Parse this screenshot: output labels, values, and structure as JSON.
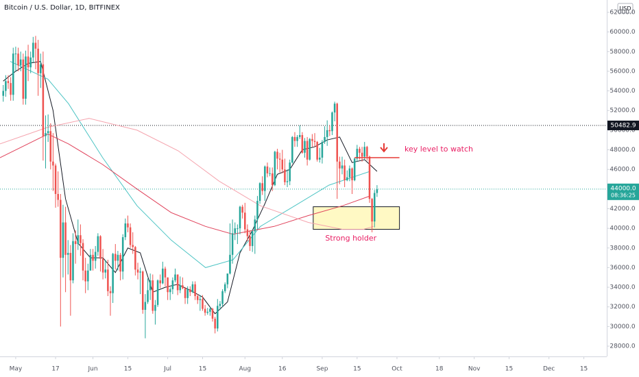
{
  "chart_data": {
    "type": "candlestick",
    "title": "Bitcoin / U.S. Dollar, 1D, BITFINEX",
    "currency": "USD",
    "up_color": "#26a69a",
    "down_color": "#ef5350",
    "open": [
      53500,
      54000,
      55000,
      54800,
      53600,
      57800,
      57800,
      56600,
      57200,
      53200,
      57500,
      56400,
      57400,
      58900,
      58300,
      55800,
      56700,
      49400,
      49700,
      49900,
      46800,
      46400,
      43500,
      42900,
      37000,
      40600,
      37300,
      37500,
      34700,
      38700,
      38400,
      39300,
      38500,
      35700,
      34600,
      35700,
      37300,
      36700,
      37600,
      39200,
      36900,
      35500,
      35800,
      33600,
      33400,
      37400,
      36700,
      37300,
      35600,
      39100,
      40500,
      40100,
      38300,
      38100,
      35800,
      35500,
      35600,
      31700,
      32500,
      33700,
      34700,
      31600,
      32200,
      34700,
      34400,
      35900,
      35000,
      33500,
      33800,
      34700,
      35300,
      33700,
      34200,
      33900,
      32900,
      33800,
      33500,
      34300,
      33100,
      32700,
      32800,
      31800,
      31400,
      31500,
      31800,
      30800,
      29800,
      32100,
      32300,
      33600,
      34300,
      35400,
      37300,
      39500,
      40000,
      40000,
      42200,
      41600,
      39900,
      39200,
      38200,
      39700,
      40900,
      42800,
      44600,
      43800,
      46300,
      45600,
      45600,
      44400,
      47800,
      47100,
      47000,
      46000,
      44700,
      44800,
      46700,
      49300,
      48900,
      49300,
      49500,
      47700,
      48900,
      47000,
      49100,
      48900,
      48800,
      47000,
      47200,
      48800,
      49300,
      50000,
      49900,
      51800,
      52700,
      46800,
      46100,
      46400,
      44900,
      45200,
      46100,
      44900,
      47100,
      48100,
      47700,
      47300,
      48300,
      47300,
      43000,
      40700,
      43600
    ],
    "high": [
      54600,
      55600,
      55600,
      55400,
      58400,
      58500,
      58400,
      58000,
      57800,
      58100,
      58700,
      58000,
      59500,
      59600,
      59200,
      57800,
      58000,
      51500,
      51600,
      50700,
      49700,
      46600,
      45800,
      43500,
      42400,
      42200,
      38800,
      38300,
      39500,
      39800,
      40900,
      40400,
      38900,
      37000,
      36400,
      37900,
      37900,
      38200,
      39500,
      39300,
      37900,
      36800,
      36800,
      34100,
      37500,
      38400,
      37700,
      37500,
      39400,
      41000,
      41300,
      40500,
      39600,
      38200,
      36500,
      36000,
      35700,
      33300,
      34900,
      35400,
      35300,
      32700,
      34800,
      35300,
      36600,
      36100,
      35000,
      34000,
      35000,
      35900,
      35300,
      35100,
      35000,
      34000,
      34100,
      34100,
      34600,
      34600,
      33300,
      33200,
      33200,
      32200,
      31900,
      32000,
      31900,
      31000,
      32800,
      32600,
      33800,
      34500,
      35400,
      40500,
      40900,
      40600,
      40400,
      42300,
      42400,
      42600,
      40400,
      39800,
      39900,
      41300,
      43300,
      44700,
      45300,
      46400,
      46700,
      46200,
      46200,
      47900,
      48100,
      47700,
      48000,
      47100,
      46000,
      47000,
      49400,
      49800,
      49500,
      50500,
      49800,
      49200,
      49300,
      49200,
      49600,
      49700,
      48900,
      48200,
      49000,
      50400,
      51000,
      50500,
      51900,
      52900,
      52800,
      47300,
      47300,
      47000,
      45900,
      46400,
      46200,
      47200,
      48500,
      48300,
      48300,
      48800,
      48400,
      47400,
      43100,
      43900,
      44400
    ],
    "low": [
      52900,
      53400,
      54200,
      53000,
      53000,
      56000,
      56000,
      56000,
      52600,
      52600,
      55000,
      55800,
      56900,
      56200,
      53500,
      54300,
      46900,
      46100,
      48800,
      46000,
      43800,
      42100,
      42200,
      30000,
      35000,
      33500,
      35300,
      31100,
      34400,
      36400,
      37800,
      37200,
      34700,
      33400,
      33700,
      35700,
      35700,
      35900,
      37200,
      35600,
      34800,
      34900,
      33100,
      31100,
      32400,
      35800,
      35700,
      34700,
      34800,
      38800,
      39600,
      38000,
      37400,
      35200,
      34800,
      33300,
      31300,
      28800,
      32300,
      32700,
      31300,
      30200,
      32000,
      33900,
      34300,
      34100,
      32700,
      32700,
      33300,
      34500,
      33200,
      33400,
      33800,
      32300,
      32300,
      33100,
      33400,
      32700,
      32300,
      31600,
      31600,
      31100,
      31200,
      31100,
      30500,
      29300,
      29500,
      31700,
      32000,
      33400,
      33900,
      35300,
      36400,
      38800,
      38400,
      39400,
      41000,
      39500,
      38700,
      37700,
      37600,
      37400,
      39900,
      42500,
      43400,
      42800,
      45200,
      45300,
      43800,
      44300,
      46000,
      45700,
      45600,
      44400,
      44200,
      44400,
      46600,
      48300,
      48300,
      49100,
      47600,
      47200,
      46400,
      46900,
      48300,
      48300,
      46800,
      46700,
      46600,
      48600,
      48400,
      49400,
      49500,
      50900,
      43000,
      44500,
      45500,
      44200,
      44800,
      44800,
      43500,
      44800,
      46800,
      47000,
      46800,
      47000,
      46900,
      42600,
      39600,
      40100,
      43200
    ],
    "close": [
      54000,
      55000,
      54800,
      53600,
      57800,
      57800,
      56600,
      57200,
      53200,
      57500,
      56400,
      57400,
      58900,
      58300,
      55800,
      56700,
      49400,
      49700,
      49900,
      46800,
      46400,
      43500,
      42900,
      37000,
      40600,
      37300,
      37500,
      34700,
      38700,
      38400,
      39300,
      38500,
      35700,
      34600,
      35700,
      37300,
      36700,
      37600,
      39200,
      36900,
      35500,
      35800,
      33600,
      33400,
      37400,
      36700,
      37300,
      35600,
      39100,
      40500,
      40100,
      38300,
      38100,
      35800,
      35500,
      35600,
      31700,
      32500,
      33700,
      34700,
      31600,
      32200,
      34700,
      34400,
      35900,
      35000,
      33500,
      33800,
      34700,
      35300,
      33700,
      34200,
      33900,
      32900,
      33800,
      33500,
      34300,
      33100,
      32700,
      32800,
      31800,
      31400,
      31500,
      31800,
      30800,
      29800,
      32100,
      32300,
      33600,
      34300,
      35400,
      37300,
      39500,
      40000,
      40000,
      42200,
      41600,
      39900,
      39200,
      38200,
      39700,
      40900,
      42800,
      44600,
      43800,
      46300,
      45600,
      45600,
      44400,
      47800,
      47100,
      47000,
      46000,
      44700,
      44800,
      46700,
      49300,
      48900,
      49300,
      49500,
      47700,
      48900,
      47000,
      49100,
      48900,
      48800,
      47000,
      47200,
      48800,
      49300,
      50000,
      49900,
      51800,
      52700,
      46800,
      46100,
      46400,
      44900,
      45200,
      46100,
      44900,
      47100,
      48100,
      47700,
      47300,
      48300,
      47300,
      43000,
      40700,
      43600,
      44000
    ],
    "lines": [
      {
        "color": "#131722",
        "x": [
          0,
          5,
          10,
          15,
          20,
          25,
          30,
          35,
          40,
          45,
          50,
          55,
          60,
          65,
          70,
          75,
          80,
          85,
          90,
          95,
          100,
          105,
          110,
          115,
          120,
          125,
          130,
          135,
          140,
          145,
          150
        ],
        "values": [
          55000,
          56000,
          56800,
          57000,
          52000,
          43000,
          38500,
          37000,
          37000,
          35500,
          38000,
          37500,
          33500,
          34000,
          34300,
          33700,
          33000,
          31300,
          32500,
          37500,
          39800,
          42500,
          45500,
          46000,
          48000,
          48300,
          49000,
          49300,
          46700,
          47000,
          45800
        ]
      },
      {
        "color": "#4dc4c4",
        "x": [
          2.8,
          17.9,
          26.2,
          39.9,
          53.7,
          67.4,
          81.2,
          92.2,
          103.2,
          117,
          130.7,
          147.2
        ],
        "values": [
          57000,
          55200,
          52700,
          47200,
          42300,
          38800,
          36000,
          36800,
          40200,
          42300,
          44400,
          45800
        ]
      },
      {
        "color": "#e0415a",
        "x": [
          -1.3,
          17.9,
          26.2,
          39.9,
          53.7,
          67.4,
          81.2,
          92.2,
          108.7,
          122.4,
          136.2,
          147.2
        ],
        "values": [
          47200,
          49600,
          48600,
          46500,
          44000,
          41600,
          40200,
          39400,
          40200,
          41300,
          42300,
          43300
        ]
      },
      {
        "color": "#f5a3ad",
        "x": [
          -1.3,
          17.9,
          34.4,
          53.7,
          70.2,
          86.7,
          103.2,
          122.4,
          136.2,
          144.5,
          148.6
        ],
        "values": [
          48600,
          50300,
          51200,
          50000,
          47900,
          44800,
          42300,
          40600,
          39900,
          39900,
          40200
        ]
      }
    ],
    "ylim": [
      26953,
      63257
    ],
    "yticks": [
      {
        "value": 28000,
        "label": "28000.0"
      },
      {
        "value": 30000,
        "label": "30000.0"
      },
      {
        "value": 32000,
        "label": "32000.0"
      },
      {
        "value": 34000,
        "label": "34000.0"
      },
      {
        "value": 36000,
        "label": "36000.0"
      },
      {
        "value": 38000,
        "label": "38000.0"
      },
      {
        "value": 40000,
        "label": "40000.0"
      },
      {
        "value": 42000,
        "label": "42000.0"
      },
      {
        "value": 44000,
        "label": "44000.0"
      },
      {
        "value": 46000,
        "label": "46000.0"
      },
      {
        "value": 48000,
        "label": "48000.0"
      },
      {
        "value": 50000,
        "label": "50000.0"
      },
      {
        "value": 52000,
        "label": "52000.0"
      },
      {
        "value": 54000,
        "label": "54000.0"
      },
      {
        "value": 56000,
        "label": "56000.0"
      },
      {
        "value": 58000,
        "label": "58000.0"
      },
      {
        "value": 60000,
        "label": "60000.0"
      },
      {
        "value": 62000,
        "label": "62000.0"
      }
    ],
    "xlim": [
      -1.3,
      242.2
    ],
    "xticks": [
      {
        "value": 5,
        "label": "May"
      },
      {
        "value": 21,
        "label": "17"
      },
      {
        "value": 36,
        "label": "Jun"
      },
      {
        "value": 50,
        "label": "15"
      },
      {
        "value": 66,
        "label": "Jul"
      },
      {
        "value": 80,
        "label": "15"
      },
      {
        "value": 97,
        "label": "Aug"
      },
      {
        "value": 112,
        "label": "16"
      },
      {
        "value": 128,
        "label": "Sep"
      },
      {
        "value": 142,
        "label": "15"
      },
      {
        "value": 158,
        "label": "Oct"
      },
      {
        "value": 175,
        "label": "18"
      },
      {
        "value": 189,
        "label": "Nov"
      },
      {
        "value": 203,
        "label": "15"
      },
      {
        "value": 219,
        "label": "Dec"
      },
      {
        "value": 233,
        "label": "15"
      }
    ],
    "reference_price": {
      "value": 50482.9,
      "label": "50482.9"
    },
    "last_price": {
      "value": 44000,
      "label": "44000.0",
      "countdown": "08:36:25"
    },
    "key_level": {
      "value": 47200,
      "x": [
        141,
        159
      ],
      "text": "key level to watch"
    },
    "zone": {
      "low": 39900,
      "high": 42200,
      "x": [
        124.4,
        159
      ],
      "text": "Strong holder"
    }
  }
}
